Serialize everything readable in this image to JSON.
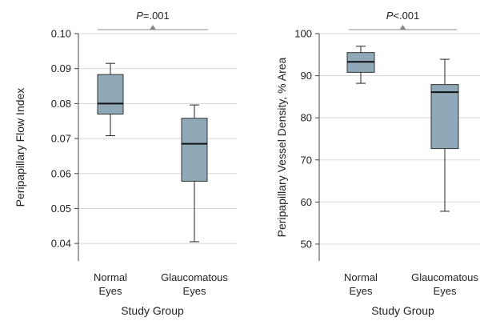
{
  "chart_data": [
    {
      "type": "box",
      "xlabel": "Study Group",
      "ylabel": "Peripapillary Flow Index",
      "ylim": [
        0.035,
        0.1
      ],
      "yticks": [
        "0.04",
        "0.05",
        "0.06",
        "0.07",
        "0.08",
        "0.09",
        "0.10"
      ],
      "grid": true,
      "significance": {
        "p_letter": "P",
        "p_rest": "=.001"
      },
      "categories": [
        {
          "line1": "Normal",
          "line2": "Eyes"
        },
        {
          "line1": "Glaucomatous",
          "line2": "Eyes"
        }
      ],
      "boxes": [
        {
          "min": 0.0708,
          "q1": 0.077,
          "median": 0.08,
          "q3": 0.0883,
          "max": 0.0915
        },
        {
          "min": 0.0405,
          "q1": 0.0578,
          "median": 0.0685,
          "q3": 0.0758,
          "max": 0.0796
        }
      ],
      "box_color": "#8fa9b8"
    },
    {
      "type": "box",
      "xlabel": "Study Group",
      "ylabel": "Peripapillary Vessel Density, % Area",
      "ylim": [
        46,
        100
      ],
      "yticks": [
        "50",
        "60",
        "70",
        "80",
        "90",
        "100"
      ],
      "grid": true,
      "significance": {
        "p_letter": "P",
        "p_rest": "<.001"
      },
      "categories": [
        {
          "line1": "Normal",
          "line2": "Eyes"
        },
        {
          "line1": "Glaucomatous",
          "line2": "Eyes"
        }
      ],
      "boxes": [
        {
          "min": 88.2,
          "q1": 90.8,
          "median": 93.3,
          "q3": 95.5,
          "max": 97
        },
        {
          "min": 57.8,
          "q1": 72.7,
          "median": 86.1,
          "q3": 87.9,
          "max": 93.9
        }
      ],
      "box_color": "#8fa9b8"
    }
  ]
}
